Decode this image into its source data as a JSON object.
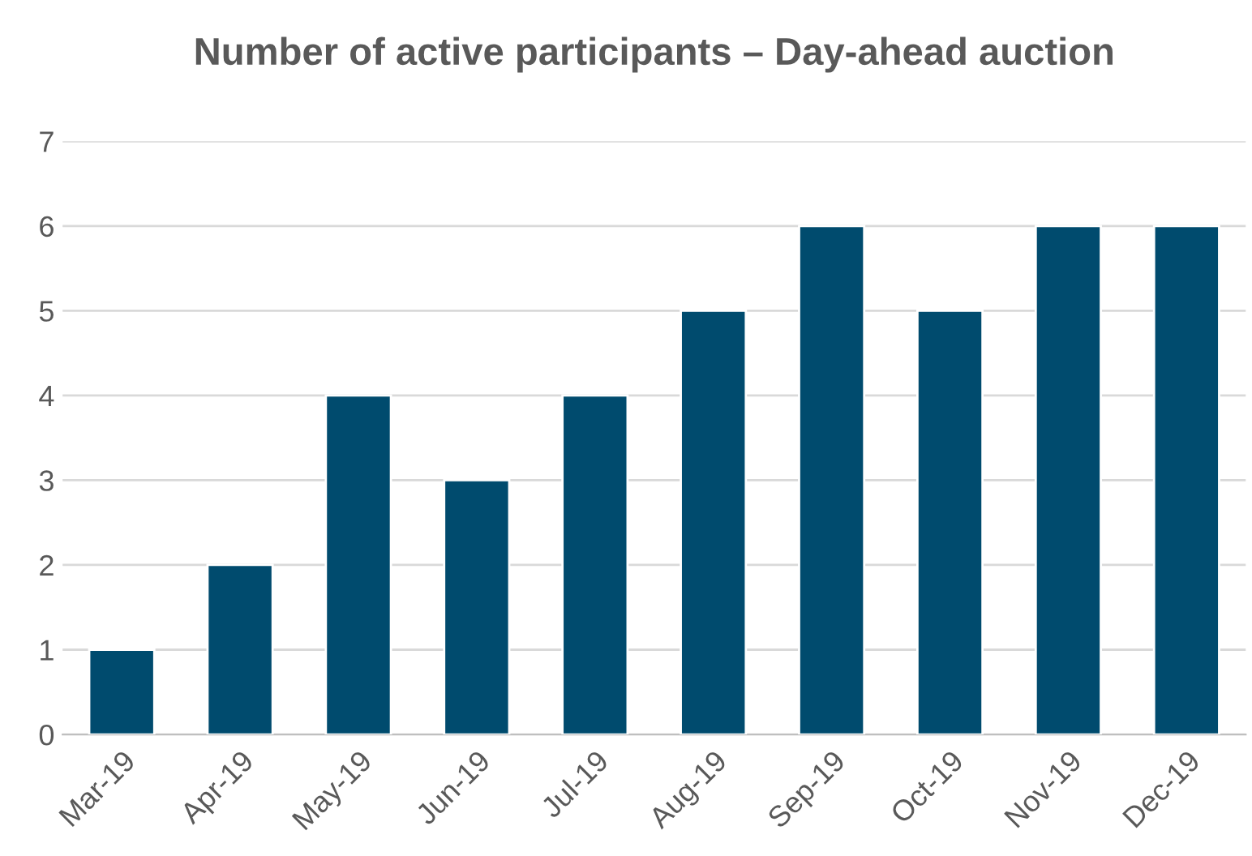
{
  "chart_data": {
    "type": "bar",
    "title": "Number of active participants – Day-ahead auction",
    "categories": [
      "Mar-19",
      "Apr-19",
      "May-19",
      "Jun-19",
      "Jul-19",
      "Aug-19",
      "Sep-19",
      "Oct-19",
      "Nov-19",
      "Dec-19"
    ],
    "values": [
      1,
      2,
      4,
      3,
      4,
      5,
      6,
      5,
      6,
      6
    ],
    "color": "#004b6e",
    "ylim": [
      0,
      7
    ],
    "yticks": [
      0,
      1,
      2,
      3,
      4,
      5,
      6,
      7
    ],
    "grid": "y"
  }
}
